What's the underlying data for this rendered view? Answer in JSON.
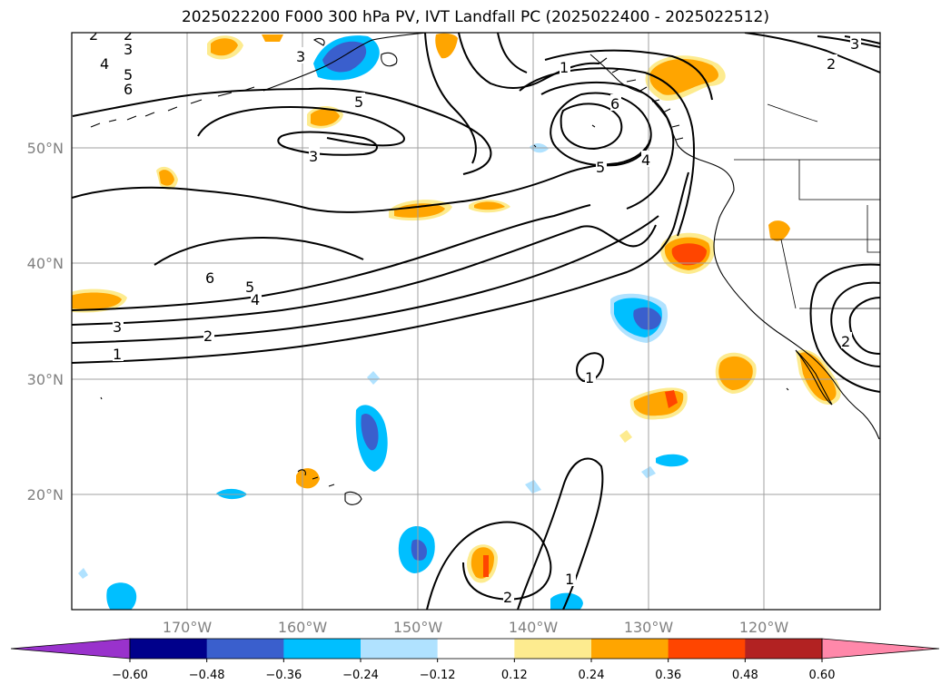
{
  "title": "2025022200 F000 300 hPa PV, IVT Landfall PC (2025022400 - 2025022512)",
  "map": {
    "lat_labels": [
      "50°N",
      "40°N",
      "30°N",
      "20°N"
    ],
    "lon_labels": [
      "170°W",
      "160°W",
      "150°W",
      "140°W",
      "130°W",
      "120°W"
    ]
  },
  "contours": {
    "labels": [
      "1",
      "2",
      "3",
      "4",
      "5",
      "6"
    ]
  },
  "colorbar": {
    "ticks": [
      "−0.60",
      "−0.48",
      "−0.36",
      "−0.24",
      "−0.12",
      "0.12",
      "0.24",
      "0.36",
      "0.48",
      "0.60"
    ],
    "colors": [
      "#9932cc",
      "#00008b",
      "#3a5fcd",
      "#00bfff",
      "#b0e2ff",
      "#ffffff",
      "#fdeb8f",
      "#ffa500",
      "#ff4500",
      "#b22222",
      "#ff88aa",
      "#ff88aa"
    ]
  }
}
